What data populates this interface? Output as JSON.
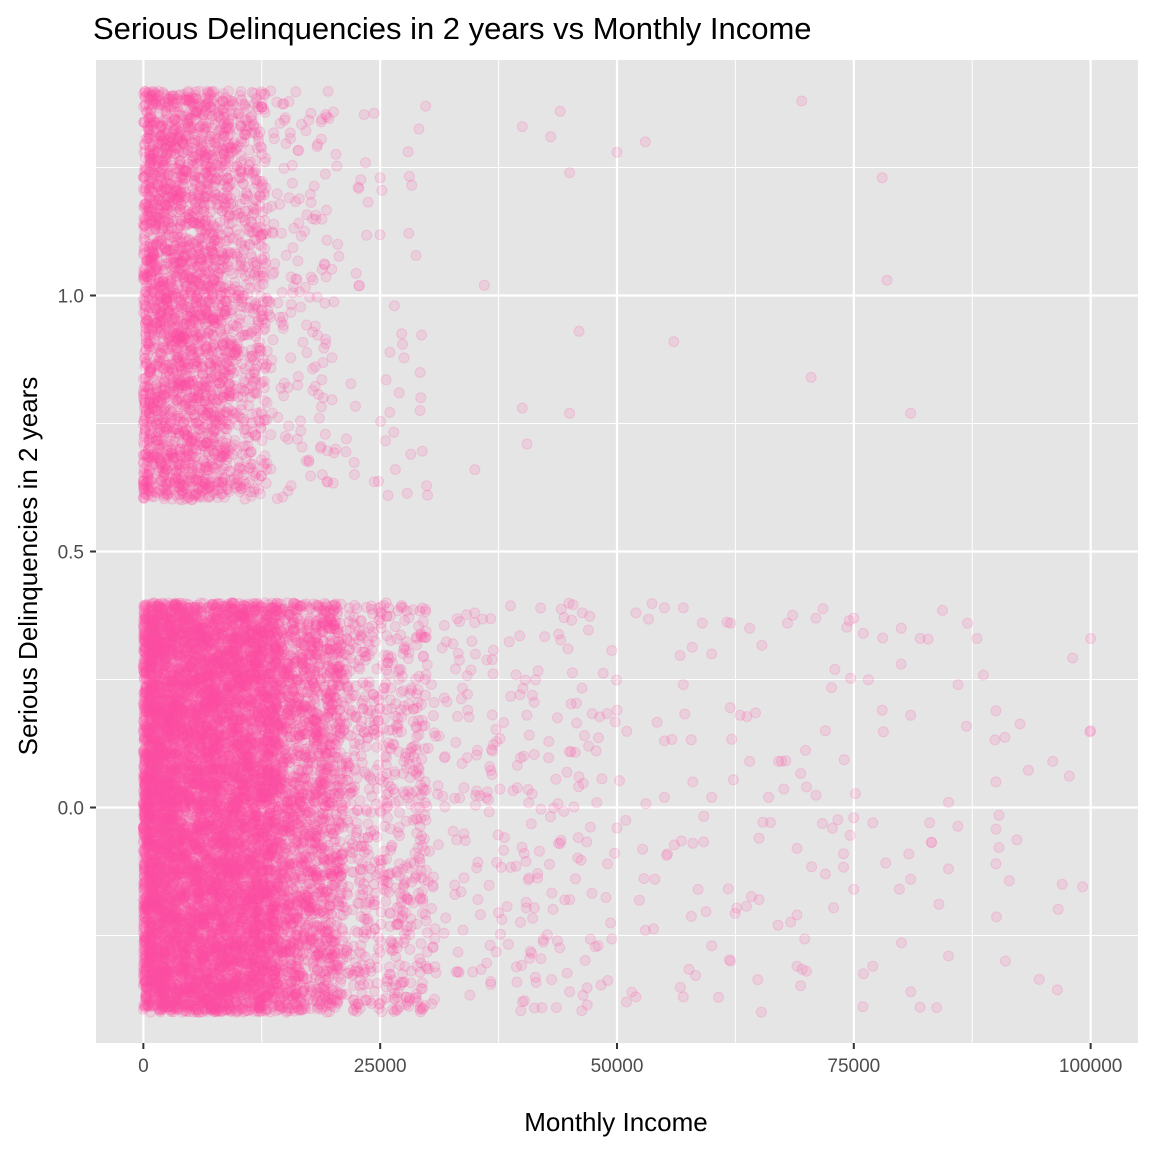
{
  "chart_data": {
    "type": "scatter",
    "title": "Serious Delinquencies in 2 years vs Monthly Income",
    "xlabel": "Monthly Income",
    "ylabel": "Serious Delinquencies in 2 years",
    "xlim": [
      -5000,
      105000
    ],
    "ylim": [
      -0.46,
      1.46
    ],
    "x_ticks": [
      0,
      25000,
      50000,
      75000,
      100000
    ],
    "x_tick_labels": [
      "0",
      "25000",
      "50000",
      "75000",
      "100000"
    ],
    "y_ticks": [
      0.0,
      0.5,
      1.0
    ],
    "y_tick_labels": [
      "0.0",
      "0.5",
      "1.0"
    ],
    "grid": true,
    "point_color": "#ff4fa3",
    "panel_color": "#e5e5e5",
    "grid_color": "#ffffff",
    "jitter": 0.4,
    "series": [
      {
        "category": 0,
        "dense_regions": [
          {
            "x": [
              0,
              14000
            ],
            "count": 9000
          },
          {
            "x": [
              14000,
              21000
            ],
            "count": 2000
          },
          {
            "x": [
              21000,
              30000
            ],
            "count": 700
          },
          {
            "x": [
              30000,
              50000
            ],
            "count": 260
          },
          {
            "x": [
              50000,
              100000
            ],
            "count": 110
          }
        ],
        "points": [
          [
            52000,
            0.38
          ],
          [
            55000,
            0.39
          ],
          [
            57000,
            0.39
          ],
          [
            59000,
            0.36
          ],
          [
            62000,
            0.36
          ],
          [
            64000,
            0.35
          ],
          [
            68000,
            0.36
          ],
          [
            71000,
            0.37
          ],
          [
            75000,
            0.37
          ],
          [
            76000,
            0.34
          ],
          [
            80000,
            0.35
          ],
          [
            82000,
            0.33
          ],
          [
            87000,
            0.36
          ],
          [
            88000,
            0.33
          ],
          [
            100000,
            0.33
          ],
          [
            100000,
            0.15
          ],
          [
            96000,
            0.09
          ],
          [
            97000,
            -0.15
          ],
          [
            90000,
            0.05
          ],
          [
            90000,
            -0.11
          ],
          [
            91000,
            -0.3
          ],
          [
            86000,
            0.24
          ],
          [
            85000,
            0.01
          ],
          [
            85000,
            -0.12
          ],
          [
            85000,
            -0.29
          ],
          [
            83000,
            -0.03
          ],
          [
            81000,
            0.18
          ],
          [
            81000,
            -0.14
          ],
          [
            80000,
            0.28
          ],
          [
            81000,
            -0.36
          ],
          [
            82000,
            -0.39
          ],
          [
            78000,
            0.19
          ],
          [
            77000,
            -0.03
          ],
          [
            77000,
            -0.31
          ],
          [
            75000,
            -0.02
          ],
          [
            75000,
            -0.16
          ],
          [
            73000,
            0.27
          ],
          [
            72000,
            0.15
          ],
          [
            72000,
            -0.13
          ],
          [
            70000,
            0.04
          ],
          [
            70000,
            -0.32
          ],
          [
            69000,
            -0.08
          ],
          [
            69000,
            -0.21
          ],
          [
            69000,
            -0.31
          ],
          [
            66000,
            0.02
          ],
          [
            65000,
            -0.06
          ],
          [
            65000,
            -0.18
          ],
          [
            63000,
            0.18
          ],
          [
            62000,
            -0.3
          ],
          [
            60000,
            0.02
          ],
          [
            60000,
            -0.27
          ],
          [
            58000,
            0.05
          ],
          [
            58000,
            -0.07
          ],
          [
            57000,
            0.24
          ],
          [
            57000,
            -0.37
          ],
          [
            55000,
            0.13
          ],
          [
            55000,
            0.02
          ],
          [
            54000,
            -0.14
          ],
          [
            53000,
            -0.24
          ],
          [
            52000,
            -0.37
          ],
          [
            51000,
            -0.38
          ],
          [
            50000,
            0.19
          ],
          [
            50000,
            -0.04
          ],
          [
            49000,
            -0.11
          ],
          [
            48000,
            -0.27
          ],
          [
            47000,
            0.12
          ],
          [
            46000,
            0.06
          ],
          [
            45000,
            -0.18
          ],
          [
            45000,
            -0.36
          ],
          [
            60000,
            0.3
          ],
          [
            64000,
            0.09
          ],
          [
            67000,
            -0.23
          ]
        ]
      },
      {
        "category": 1,
        "dense_regions": [
          {
            "x": [
              0,
              9000
            ],
            "count": 2600
          },
          {
            "x": [
              9000,
              13000
            ],
            "count": 500
          },
          {
            "x": [
              13000,
              20000
            ],
            "count": 160
          },
          {
            "x": [
              20000,
              30000
            ],
            "count": 55
          }
        ],
        "points": [
          [
            69500,
            1.38
          ],
          [
            53000,
            1.3
          ],
          [
            43000,
            1.31
          ],
          [
            44000,
            1.36
          ],
          [
            40000,
            1.33
          ],
          [
            50000,
            1.28
          ],
          [
            45000,
            1.24
          ],
          [
            78000,
            1.23
          ],
          [
            36000,
            1.02
          ],
          [
            78500,
            1.03
          ],
          [
            46000,
            0.93
          ],
          [
            56000,
            0.91
          ],
          [
            70500,
            0.84
          ],
          [
            40000,
            0.78
          ],
          [
            45000,
            0.77
          ],
          [
            81000,
            0.77
          ],
          [
            40500,
            0.71
          ],
          [
            35000,
            0.66
          ],
          [
            30000,
            0.61
          ],
          [
            27000,
            0.81
          ],
          [
            29800,
            1.37
          ],
          [
            25000,
            1.23
          ],
          [
            26500,
            0.98
          ]
        ]
      }
    ]
  }
}
